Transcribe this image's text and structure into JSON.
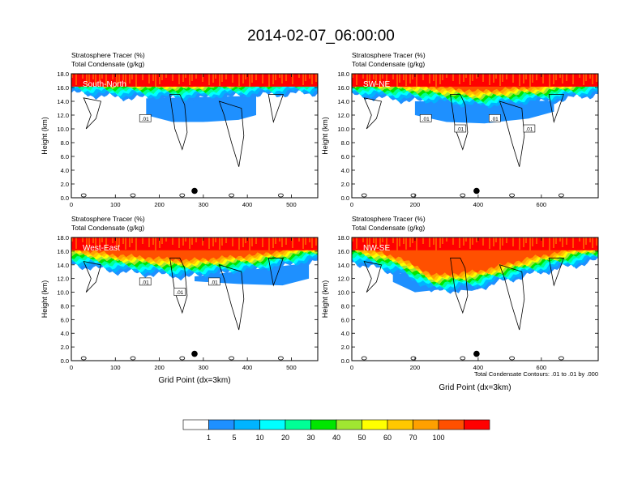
{
  "title": "2014-02-07_06:00:00",
  "colors": {
    "levels": [
      "#ffffff",
      "#1e90ff",
      "#00b4ff",
      "#00ffff",
      "#00ff96",
      "#00e600",
      "#a0e632",
      "#ffff00",
      "#ffc800",
      "#ffa000",
      "#ff5000",
      "#ff0000"
    ],
    "contour": "#000000",
    "marker": "#000000"
  },
  "colorbar": {
    "labels": [
      "1",
      "5",
      "10",
      "20",
      "30",
      "40",
      "50",
      "60",
      "70",
      "100"
    ]
  },
  "footnote": "Total Condensate Contours: .01 to .01 by .000",
  "chart_data": [
    {
      "type": "heatmap",
      "panel": "South-North",
      "header_line1": "Stratosphere Tracer   (%)",
      "header_line2": "Total Condensate   (g/kg)",
      "ylabel": "Height (km)",
      "xlabel": "",
      "xlim": [
        0,
        560
      ],
      "xticks": [
        "0",
        "100",
        "200",
        "300",
        "400",
        "500"
      ],
      "ylim": [
        0,
        18
      ],
      "yticks": [
        "0.0",
        "2.0",
        "4.0",
        "6.0",
        "8.0",
        "10.0",
        "12.0",
        "14.0",
        "16.0",
        "18.0"
      ],
      "marker_point": [
        280,
        1.0
      ],
      "contour_labels": [
        ".01"
      ],
      "tracer_bands": [
        {
          "x": [
            0,
            90,
            180,
            260,
            360,
            480,
            560
          ],
          "bottom": [
            15.2,
            14.6,
            14.4,
            14.2,
            14.6,
            15.0,
            15.2
          ],
          "level": "1-5"
        },
        {
          "x": [
            0,
            90,
            180,
            260,
            360,
            480,
            560
          ],
          "bottom": [
            15.6,
            15.0,
            14.9,
            14.6,
            15.0,
            15.3,
            15.5
          ],
          "level": "10-30"
        },
        {
          "x": [
            0,
            560
          ],
          "bottom": [
            16.6,
            16.6
          ],
          "level": "70-100"
        }
      ],
      "blue_region": {
        "x": [
          170,
          230,
          300,
          380,
          420
        ],
        "bottom": [
          12.0,
          11.0,
          11.0,
          11.3,
          12.0
        ]
      }
    },
    {
      "type": "heatmap",
      "panel": "SW-NE",
      "header_line1": "Stratosphere Tracer   (%)",
      "header_line2": "Total Condensate   (g/kg)",
      "ylabel": "Height (km)",
      "xlabel": "",
      "xlim": [
        0,
        780
      ],
      "xticks": [
        "0",
        "200",
        "400",
        "600"
      ],
      "ylim": [
        0,
        18
      ],
      "yticks": [
        "0.0",
        "2.0",
        "4.0",
        "6.0",
        "8.0",
        "10.0",
        "12.0",
        "14.0",
        "16.0",
        "18.0"
      ],
      "marker_point": [
        395,
        1.0
      ],
      "contour_labels": [
        ".01",
        ".01",
        ".01",
        ".01"
      ],
      "tracer_bands": [
        {
          "x": [
            0,
            200,
            400,
            600,
            780
          ],
          "bottom": [
            14.8,
            14.0,
            13.0,
            13.8,
            15.0
          ],
          "level": "1-5"
        },
        {
          "x": [
            0,
            780
          ],
          "bottom": [
            16.6,
            16.6
          ],
          "level": "70-100"
        }
      ],
      "blue_region": {
        "x": [
          200,
          300,
          420,
          560,
          640
        ],
        "bottom": [
          12.0,
          11.0,
          10.8,
          11.5,
          12.5
        ]
      }
    },
    {
      "type": "heatmap",
      "panel": "West-East",
      "header_line1": "Stratosphere Tracer   (%)",
      "header_line2": "Total Condensate   (g/kg)",
      "ylabel": "Height (km)",
      "xlabel": "Grid Point (dx=3km)",
      "xlim": [
        0,
        560
      ],
      "xticks": [
        "0",
        "100",
        "200",
        "300",
        "400",
        "500"
      ],
      "ylim": [
        0,
        18
      ],
      "yticks": [
        "0.0",
        "2.0",
        "4.0",
        "6.0",
        "8.0",
        "10.0",
        "12.0",
        "14.0",
        "16.0",
        "18.0"
      ],
      "marker_point": [
        280,
        1.0
      ],
      "contour_labels": [
        ".01",
        ".01",
        ".01"
      ],
      "tracer_bands": [
        {
          "x": [
            0,
            100,
            260,
            420,
            560
          ],
          "bottom": [
            14.0,
            13.0,
            12.2,
            13.0,
            14.5
          ],
          "level": "1-5"
        },
        {
          "x": [
            0,
            560
          ],
          "bottom": [
            16.6,
            16.6
          ],
          "level": "70-100"
        }
      ],
      "blue_region": {
        "x": [
          280,
          380,
          480,
          540
        ],
        "bottom": [
          11.6,
          11.2,
          11.0,
          12.0
        ]
      }
    },
    {
      "type": "heatmap",
      "panel": "NW-SE",
      "header_line1": "Stratosphere Tracer   (%)",
      "header_line2": "Total Condensate   (g/kg)",
      "ylabel": "Height (km)",
      "xlabel": "Grid Point (dx=3km)",
      "xlim": [
        0,
        780
      ],
      "xticks": [
        "0",
        "200",
        "400",
        "600"
      ],
      "ylim": [
        0,
        18
      ],
      "yticks": [
        "0.0",
        "2.0",
        "4.0",
        "6.0",
        "8.0",
        "10.0",
        "12.0",
        "14.0",
        "16.0",
        "18.0"
      ],
      "marker_point": [
        395,
        1.0
      ],
      "contour_labels": [],
      "tracer_bands": [
        {
          "x": [
            0,
            150,
            260,
            400,
            560,
            780
          ],
          "bottom": [
            14.4,
            12.6,
            10.0,
            10.6,
            12.5,
            14.6
          ],
          "level": "1-5"
        },
        {
          "x": [
            0,
            780
          ],
          "bottom": [
            16.6,
            16.6
          ],
          "level": "70-100"
        }
      ],
      "blue_region": {
        "x": [
          130,
          200,
          300,
          380,
          440
        ],
        "bottom": [
          11.5,
          10.0,
          10.5,
          10.2,
          11.0
        ]
      }
    }
  ]
}
